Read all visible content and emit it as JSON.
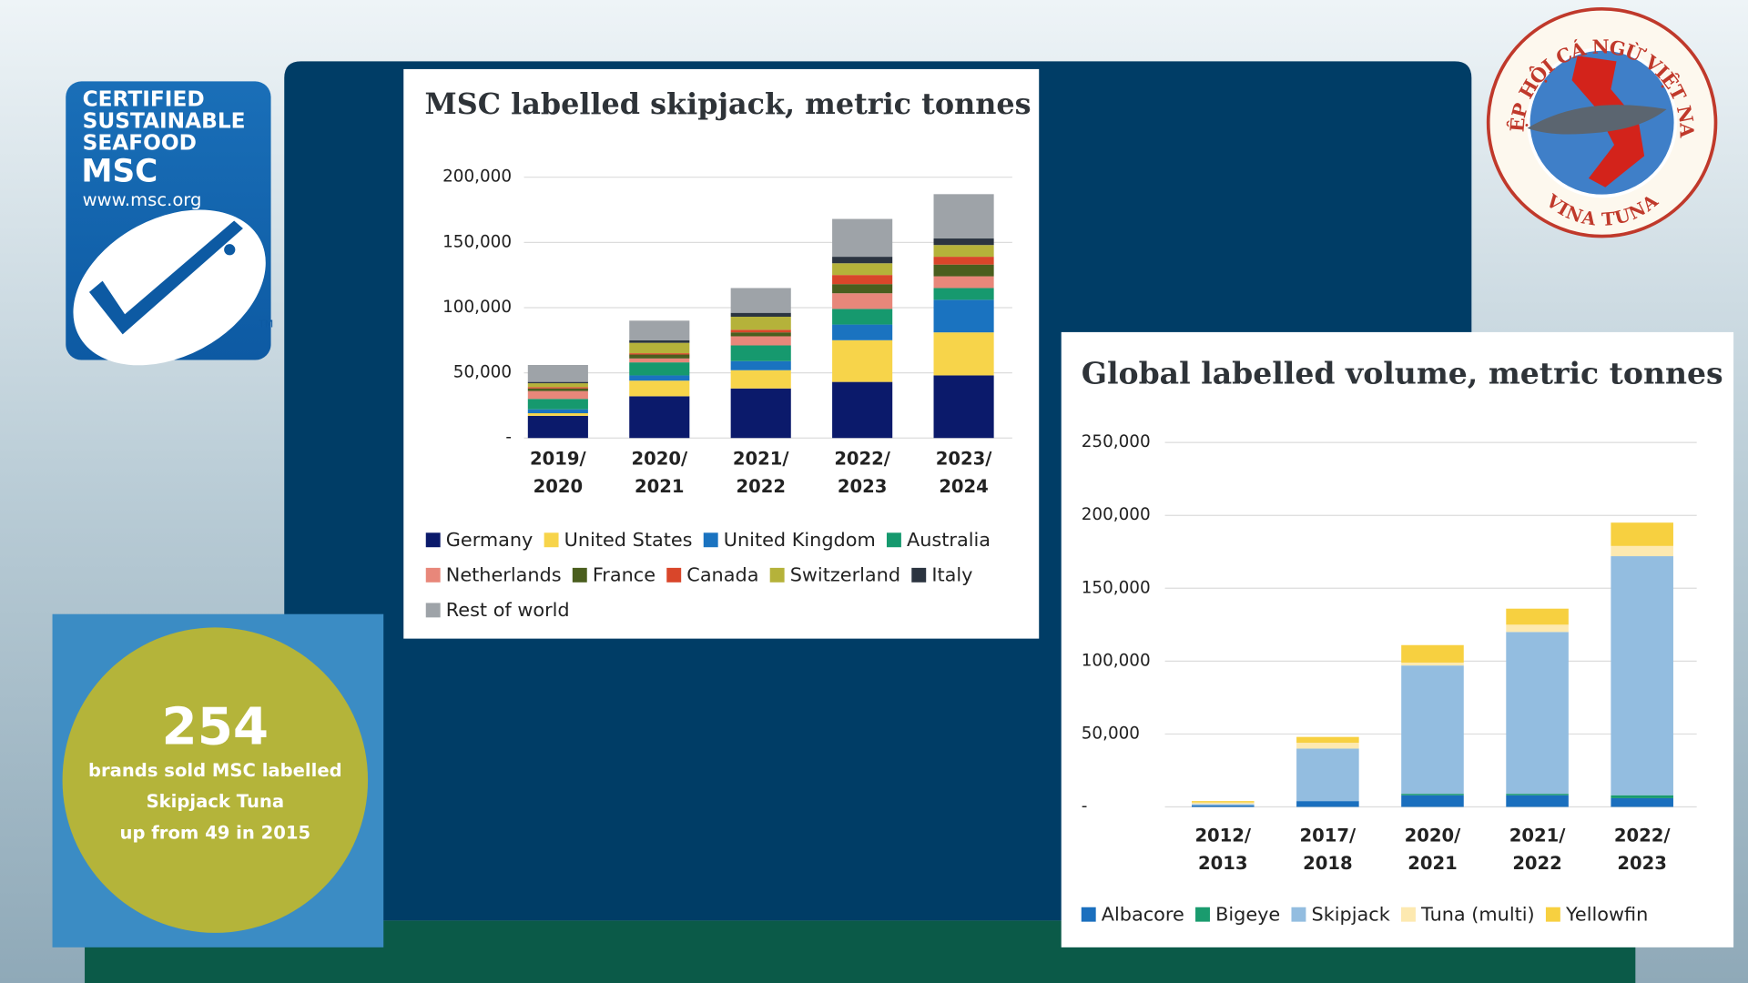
{
  "msc_logo": {
    "lines": [
      "CERTIFIED",
      "SUSTAINABLE",
      "SEAFOOD"
    ],
    "brand": "MSC",
    "url": "www.msc.org",
    "tm": "TM"
  },
  "badge": {
    "number": 254,
    "lines": [
      "brands sold MSC labelled",
      "Skipjack Tuna",
      "up from 49 in 2015"
    ]
  },
  "vina_tuna_logo": {
    "top": "HIỆP HỘI CÁ NGỪ VIỆT NAM",
    "bottom": "VINA TUNA"
  },
  "chart_data": [
    {
      "type": "stacked_bar",
      "title": "MSC labelled skipjack, metric tonnes",
      "categories": [
        "2019/2020",
        "2020/2021",
        "2021/2022",
        "2022/2023",
        "2023/2024"
      ],
      "series": [
        {
          "name": "Germany",
          "color": "#0b1a6b",
          "values": [
            17000,
            32000,
            38000,
            43000,
            48000
          ]
        },
        {
          "name": "United States",
          "color": "#f7d44a",
          "values": [
            2000,
            12000,
            14000,
            32000,
            33000
          ]
        },
        {
          "name": "United Kingdom",
          "color": "#1a73c0",
          "values": [
            3000,
            4000,
            7000,
            12000,
            25000
          ]
        },
        {
          "name": "Australia",
          "color": "#16996e",
          "values": [
            8000,
            10000,
            12000,
            12000,
            9000
          ]
        },
        {
          "name": "Netherlands",
          "color": "#e8877a",
          "values": [
            6000,
            3000,
            7000,
            12000,
            9000
          ]
        },
        {
          "name": "France",
          "color": "#4a5e1e",
          "values": [
            2000,
            3000,
            3000,
            7000,
            9000
          ]
        },
        {
          "name": "Canada",
          "color": "#d9462a",
          "values": [
            1000,
            1000,
            2000,
            7000,
            6000
          ]
        },
        {
          "name": "Switzerland",
          "color": "#b5b23a",
          "values": [
            3000,
            8000,
            10000,
            9000,
            9000
          ]
        },
        {
          "name": "Italy",
          "color": "#2b3440",
          "values": [
            1000,
            2000,
            3000,
            5000,
            5000
          ]
        },
        {
          "name": "Rest of world",
          "color": "#9ea3a8",
          "values": [
            13000,
            15000,
            19000,
            29000,
            34000
          ]
        }
      ],
      "ylim": [
        0,
        200000
      ],
      "yticks": [
        {
          "value": 0,
          "label": "-"
        },
        {
          "value": 50000,
          "label": "50,000"
        },
        {
          "value": 100000,
          "label": "100,000"
        },
        {
          "value": 150000,
          "label": "150,000"
        },
        {
          "value": 200000,
          "label": "200,000"
        }
      ],
      "grid": true
    },
    {
      "type": "stacked_bar",
      "title": "Global labelled volume, metric tonnes",
      "categories": [
        "2012/2013",
        "2017/2018",
        "2020/2021",
        "2021/2022",
        "2022/2023"
      ],
      "series": [
        {
          "name": "Albacore",
          "color": "#1a6fbe",
          "values": [
            1000,
            4000,
            8000,
            8000,
            6000
          ]
        },
        {
          "name": "Bigeye",
          "color": "#1a9b6e",
          "values": [
            0,
            0,
            1000,
            1000,
            2000
          ]
        },
        {
          "name": "Skipjack",
          "color": "#93bde0",
          "values": [
            1000,
            36000,
            88000,
            111000,
            164000
          ]
        },
        {
          "name": "Tuna (multi)",
          "color": "#fde9b0",
          "values": [
            1000,
            4000,
            2000,
            5000,
            7000
          ]
        },
        {
          "name": "Yellowfin",
          "color": "#f7d040",
          "values": [
            1000,
            4000,
            12000,
            11000,
            16000
          ]
        }
      ],
      "ylim": [
        0,
        250000
      ],
      "yticks": [
        {
          "value": 0,
          "label": "-"
        },
        {
          "value": 50000,
          "label": "50,000"
        },
        {
          "value": 100000,
          "label": "100,000"
        },
        {
          "value": 150000,
          "label": "150,000"
        },
        {
          "value": 200000,
          "label": "200,000"
        },
        {
          "value": 250000,
          "label": "250,000"
        }
      ],
      "grid": true
    }
  ]
}
